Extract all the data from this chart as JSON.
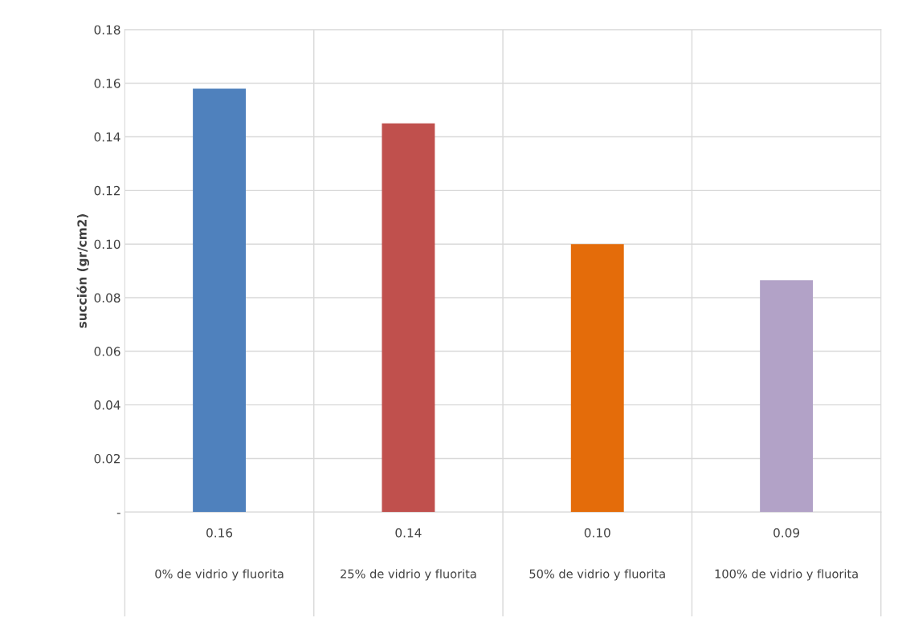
{
  "chart_data": {
    "type": "bar",
    "ylabel": "succión (gr/cm2)",
    "categories": [
      "0% de vidrio y fluorita",
      "25% de vidrio y fluorita",
      "50% de vidrio y fluorita",
      "100% de vidrio y fluorita"
    ],
    "values": [
      0.158,
      0.145,
      0.1,
      0.0865
    ],
    "colors": [
      "#4f81bd",
      "#c0504d",
      "#e46c0a",
      "#b2a2c7"
    ],
    "value_labels": [
      "0.16",
      "0.14",
      "0.10",
      "0.09"
    ],
    "ylim": [
      0,
      0.18
    ],
    "yticks": [
      {
        "value": 0,
        "label": "-"
      },
      0.02,
      0.04,
      0.06,
      0.08,
      {
        "value": 0.1,
        "label": "0.10"
      },
      0.12,
      0.14,
      0.16,
      0.18
    ],
    "grid": true
  }
}
